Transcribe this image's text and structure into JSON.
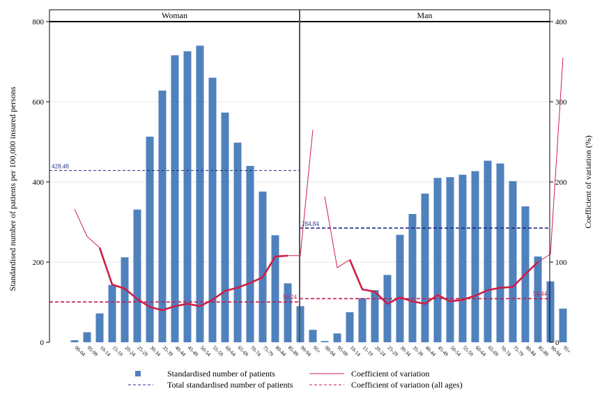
{
  "chart_data": {
    "type": "bar",
    "y_left_label": "Standardised number of patients per 100,000 insured persons",
    "y_right_label": "Coefficient of variation (%)",
    "ylim_left": [
      0,
      800
    ],
    "ylim_right": [
      0,
      400
    ],
    "yticks_left": [
      "0",
      "200",
      "400",
      "600",
      "800"
    ],
    "yticks_right": [
      "0",
      "100",
      "200",
      "300",
      "400"
    ],
    "grid": true,
    "legend_position": "bottom",
    "categories": [
      "00-04",
      "05-09",
      "10-14",
      "15-19",
      "20-24",
      "25-29",
      "30-34",
      "35-39",
      "40-44",
      "45-49",
      "50-54",
      "55-59",
      "60-64",
      "65-69",
      "70-74",
      "75-79",
      "80-84",
      "85-89",
      "90-94",
      "95+"
    ],
    "colors": {
      "bars": "#4f81bd",
      "cv_line": "#d01c44",
      "total_line": "#1f2a80",
      "cv_all_line": "#c21a4a"
    },
    "panels": [
      {
        "title": "Woman",
        "patients": [
          5,
          25,
          72,
          143,
          212,
          331,
          513,
          628,
          716,
          726,
          740,
          660,
          573,
          498,
          440,
          376,
          267,
          147,
          90,
          31
        ],
        "cv": [
          166,
          132,
          118,
          72,
          67,
          54,
          44,
          40,
          45,
          48,
          45,
          53,
          64,
          68,
          74,
          81,
          107,
          108,
          108,
          265
        ],
        "cv_thin_segments": [
          [
            0,
            2
          ],
          [
            17,
            19
          ]
        ],
        "total_standardised": 428.48,
        "total_label": "428.48",
        "cv_all_ages": 50.24,
        "cv_all_label": "50.24"
      },
      {
        "title": "Man",
        "patients": [
          3,
          22,
          75,
          110,
          130,
          168,
          268,
          320,
          371,
          410,
          412,
          418,
          427,
          453,
          446,
          402,
          339,
          214,
          152,
          84
        ],
        "cv": [
          182,
          93,
          103,
          66,
          63,
          48,
          56,
          51,
          48,
          59,
          51,
          53,
          58,
          65,
          68,
          69,
          85,
          100,
          110,
          355
        ],
        "cv_thin_segments": [
          [
            0,
            2
          ],
          [
            17,
            19
          ]
        ],
        "total_standardised": 284.84,
        "total_label": "284.84",
        "cv_all_ages": 54.44,
        "cv_all_label": "54.44"
      }
    ],
    "legend": [
      {
        "key": "patients",
        "label": "Standardised number of patients"
      },
      {
        "key": "cv",
        "label": "Coefficient of variation"
      },
      {
        "key": "total",
        "label": "Total standardised number of patients"
      },
      {
        "key": "cv_all",
        "label": "Coefficient of variation (all ages)"
      }
    ]
  }
}
